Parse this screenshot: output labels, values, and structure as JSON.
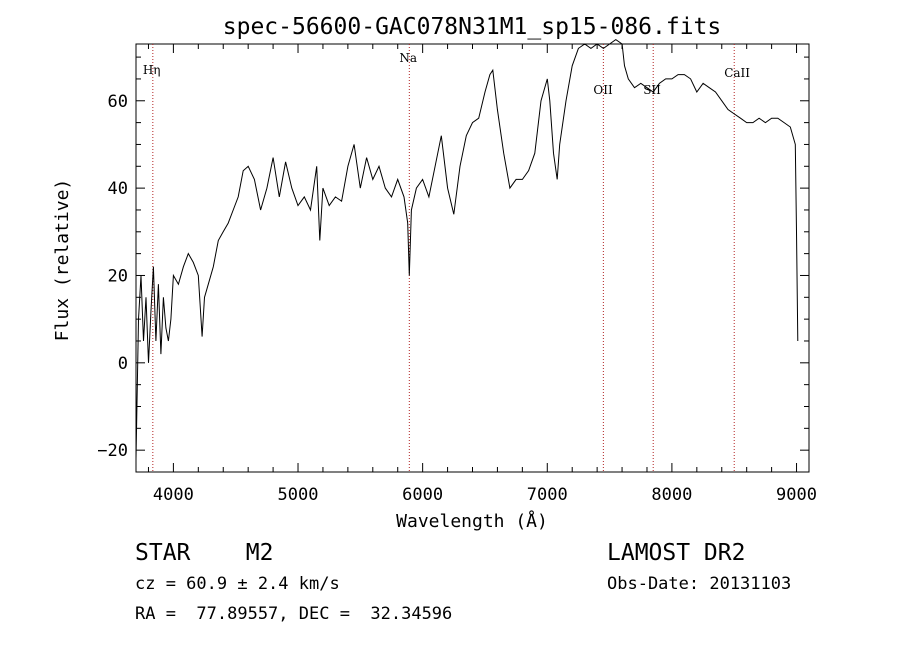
{
  "chart_data": {
    "type": "line",
    "title": "spec-56600-GAC078N31M1_sp15-086.fits",
    "xlabel": "Wavelength (Å)",
    "ylabel": "Flux (relative)",
    "xlim": [
      3700,
      9100
    ],
    "ylim": [
      -25,
      73
    ],
    "xticks": [
      4000,
      5000,
      6000,
      7000,
      8000,
      9000
    ],
    "yticks": [
      -20,
      0,
      20,
      40,
      60
    ],
    "grid": false,
    "line_color": "#000000",
    "marker_color": "#b22222",
    "lines": [
      {
        "label": "Hη",
        "wavelength": 3835
      },
      {
        "label": "Na",
        "wavelength": 5893
      },
      {
        "label": "OII",
        "wavelength": 7450
      },
      {
        "label": "SII",
        "wavelength": 7850
      },
      {
        "label": "CaII",
        "wavelength": 8500
      }
    ],
    "series": [
      {
        "x": [
          3700,
          3720,
          3740,
          3760,
          3780,
          3800,
          3820,
          3840,
          3860,
          3880,
          3900,
          3920,
          3940,
          3960,
          3980,
          4000,
          4040,
          4080,
          4120,
          4160,
          4200,
          4230,
          4250,
          4280,
          4320,
          4360,
          4400,
          4440,
          4480,
          4520,
          4560,
          4600,
          4650,
          4700,
          4750,
          4800,
          4850,
          4900,
          4950,
          5000,
          5050,
          5100,
          5150,
          5175,
          5200,
          5250,
          5300,
          5350,
          5400,
          5450,
          5500,
          5550,
          5600,
          5650,
          5700,
          5750,
          5800,
          5850,
          5880,
          5893,
          5910,
          5950,
          6000,
          6050,
          6100,
          6150,
          6200,
          6250,
          6300,
          6350,
          6400,
          6450,
          6500,
          6540,
          6563,
          6600,
          6650,
          6700,
          6750,
          6800,
          6850,
          6900,
          6950,
          7000,
          7020,
          7050,
          7080,
          7100,
          7150,
          7200,
          7250,
          7300,
          7350,
          7400,
          7450,
          7500,
          7550,
          7600,
          7620,
          7650,
          7700,
          7750,
          7800,
          7850,
          7900,
          7950,
          8000,
          8050,
          8100,
          8150,
          8200,
          8250,
          8300,
          8350,
          8400,
          8450,
          8500,
          8550,
          8600,
          8650,
          8700,
          8750,
          8800,
          8850,
          8900,
          8950,
          8990,
          9000,
          9010
        ],
        "y": [
          -22,
          10,
          20,
          5,
          15,
          0,
          12,
          22,
          5,
          18,
          2,
          15,
          8,
          5,
          10,
          20,
          18,
          22,
          25,
          23,
          20,
          6,
          15,
          18,
          22,
          28,
          30,
          32,
          35,
          38,
          44,
          45,
          42,
          35,
          40,
          47,
          38,
          46,
          40,
          36,
          38,
          35,
          45,
          28,
          40,
          36,
          38,
          37,
          45,
          50,
          40,
          47,
          42,
          45,
          40,
          38,
          42,
          38,
          32,
          20,
          35,
          40,
          42,
          38,
          45,
          52,
          40,
          34,
          45,
          52,
          55,
          56,
          62,
          66,
          67,
          58,
          48,
          40,
          42,
          42,
          44,
          48,
          60,
          65,
          60,
          48,
          42,
          50,
          60,
          68,
          72,
          73,
          72,
          73,
          72,
          73,
          74,
          73,
          68,
          65,
          63,
          64,
          63,
          62,
          64,
          65,
          65,
          66,
          66,
          65,
          62,
          64,
          63,
          62,
          60,
          58,
          57,
          56,
          55,
          55,
          56,
          55,
          56,
          56,
          55,
          54,
          50,
          30,
          5
        ]
      }
    ]
  },
  "info": {
    "left_big": "STAR    M2",
    "right_big": "LAMOST DR2",
    "cz_line": "cz = 60.9 ± 2.4 km/s",
    "obs_date": "Obs-Date: 20131103",
    "radec_line": "RA =  77.89557, DEC =  32.34596"
  }
}
